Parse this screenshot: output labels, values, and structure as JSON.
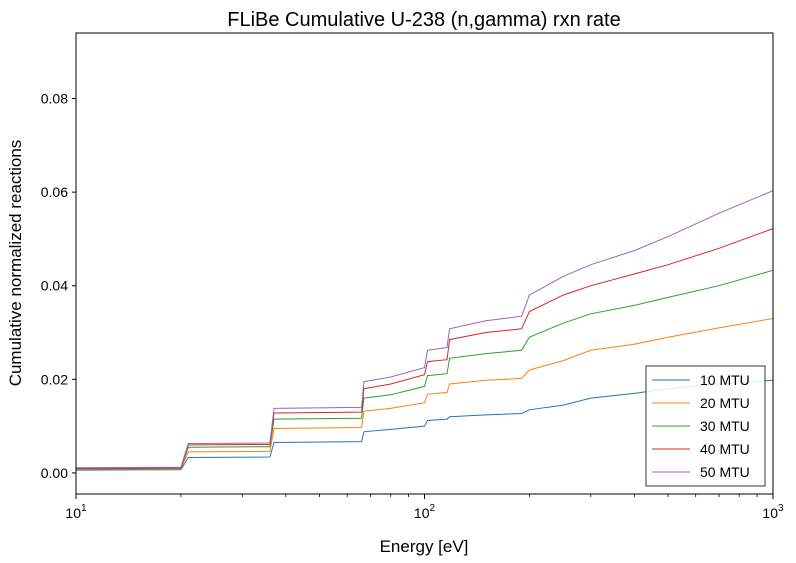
{
  "chart_data": {
    "type": "line",
    "title": "FLiBe Cumulative U-238 (n,gamma) rxn rate",
    "xlabel": "Energy [eV]",
    "ylabel": "Cumulative normalized reactions",
    "xscale": "log",
    "xlim": [
      10,
      1000
    ],
    "ylim": [
      -0.0045,
      0.094
    ],
    "x_ticks": [
      {
        "base": "10",
        "exp": "1",
        "value": 10
      },
      {
        "base": "10",
        "exp": "2",
        "value": 100
      },
      {
        "base": "10",
        "exp": "3",
        "value": 1000
      }
    ],
    "y_ticks": [
      {
        "label": "0.00",
        "value": 0.0
      },
      {
        "label": "0.02",
        "value": 0.02
      },
      {
        "label": "0.04",
        "value": 0.04
      },
      {
        "label": "0.06",
        "value": 0.06
      },
      {
        "label": "0.08",
        "value": 0.08
      }
    ],
    "grid": false,
    "legend_position": "bottom-right",
    "x": [
      10,
      20,
      21,
      36,
      37,
      66,
      67,
      80,
      100,
      102,
      116,
      118,
      150,
      190,
      200,
      250,
      300,
      400,
      500,
      700,
      1000
    ],
    "series": [
      {
        "name": "10 MTU",
        "color": "#1f77b4",
        "values": [
          0.0006,
          0.0007,
          0.0033,
          0.0034,
          0.0065,
          0.0067,
          0.0088,
          0.0093,
          0.01,
          0.0112,
          0.0115,
          0.012,
          0.0124,
          0.0127,
          0.0135,
          0.0145,
          0.016,
          0.017,
          0.018,
          0.019,
          0.0198
        ]
      },
      {
        "name": "20 MTU",
        "color": "#ff7f0e",
        "values": [
          0.0008,
          0.0009,
          0.0045,
          0.0046,
          0.0095,
          0.0097,
          0.0132,
          0.0138,
          0.015,
          0.0168,
          0.0172,
          0.019,
          0.0198,
          0.0202,
          0.022,
          0.024,
          0.0262,
          0.0275,
          0.029,
          0.031,
          0.033
        ]
      },
      {
        "name": "30 MTU",
        "color": "#2ca02c",
        "values": [
          0.0009,
          0.001,
          0.0055,
          0.0056,
          0.0115,
          0.0117,
          0.016,
          0.0167,
          0.0185,
          0.0208,
          0.0212,
          0.0245,
          0.0255,
          0.0262,
          0.029,
          0.032,
          0.034,
          0.0358,
          0.0375,
          0.04,
          0.0433
        ]
      },
      {
        "name": "40 MTU",
        "color": "#d62728",
        "values": [
          0.001,
          0.0011,
          0.006,
          0.0061,
          0.0128,
          0.013,
          0.018,
          0.019,
          0.021,
          0.0238,
          0.0242,
          0.0285,
          0.03,
          0.0308,
          0.0345,
          0.038,
          0.04,
          0.0425,
          0.0445,
          0.048,
          0.0522
        ]
      },
      {
        "name": "50 MTU",
        "color": "#9467bd",
        "values": [
          0.0011,
          0.0012,
          0.0063,
          0.0064,
          0.0138,
          0.014,
          0.0195,
          0.0205,
          0.0225,
          0.0262,
          0.0268,
          0.0308,
          0.0325,
          0.0335,
          0.038,
          0.042,
          0.0445,
          0.0475,
          0.0505,
          0.0555,
          0.0603
        ]
      }
    ]
  }
}
